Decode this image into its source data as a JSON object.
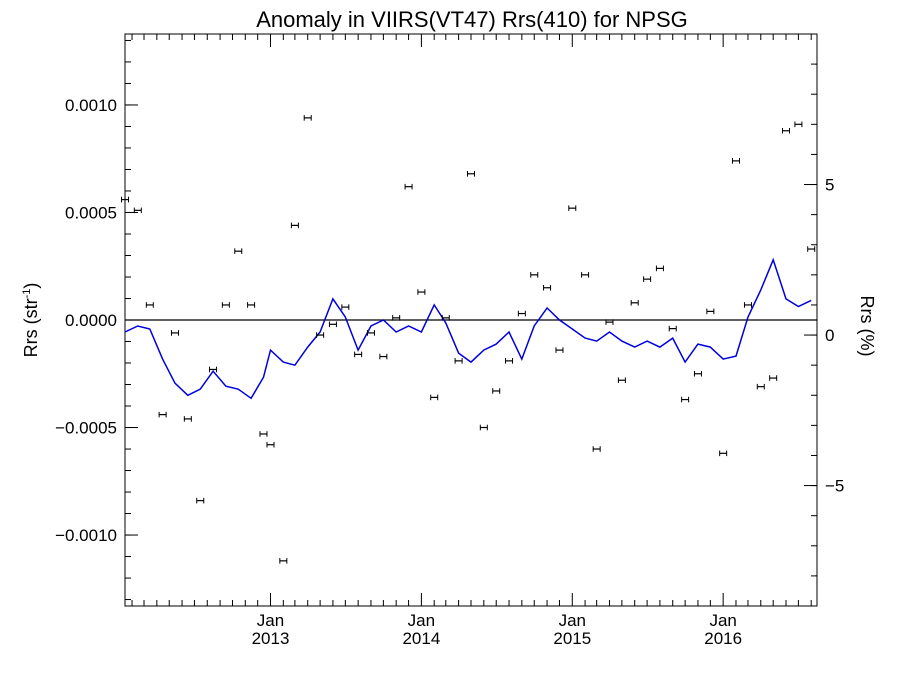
{
  "chart_data": {
    "type": "scatter",
    "title": "Anomaly in VIIRS(VT47) Rrs(410) for NPSG",
    "ylabel_left": "Rrs (str",
    "ylabel_left_sup": "-1",
    "ylabel_left_close": ")",
    "ylabel_right": "Rrs (%)",
    "x_range": [
      "2012-01-15",
      "2016-08-15"
    ],
    "ylim_left": [
      -0.00133,
      0.00133
    ],
    "ylim_right": [
      -9,
      10
    ],
    "zero_line": true,
    "grid": false,
    "y_ticks_left": [
      {
        "value": 0.001,
        "label": "0.0010"
      },
      {
        "value": 0.0005,
        "label": "0.0005"
      },
      {
        "value": 0,
        "label": "0.0000"
      },
      {
        "value": -0.0005,
        "label": "−0.0005"
      },
      {
        "value": -0.001,
        "label": "−0.0010"
      }
    ],
    "y_ticks_right": [
      {
        "value": 5,
        "label": "5"
      },
      {
        "value": 0,
        "label": "0"
      },
      {
        "value": -5,
        "label": "−5"
      }
    ],
    "x_ticks": [
      {
        "date": "2013-01-01",
        "month": "Jan",
        "year": "2013"
      },
      {
        "date": "2014-01-01",
        "month": "Jan",
        "year": "2014"
      },
      {
        "date": "2015-01-01",
        "month": "Jan",
        "year": "2015"
      },
      {
        "date": "2016-01-01",
        "month": "Jan",
        "year": "2016"
      }
    ],
    "series": [
      {
        "kind": "error_points",
        "axis": "left",
        "color": "#000000",
        "x": [
          "2012-01-15",
          "2012-02-15",
          "2012-03-15",
          "2012-04-15",
          "2012-05-15",
          "2012-06-15",
          "2012-07-15",
          "2012-08-15",
          "2012-09-15",
          "2012-10-15",
          "2012-11-15",
          "2012-12-15",
          "2013-01-01",
          "2013-02-01",
          "2013-03-01",
          "2013-04-01",
          "2013-05-01",
          "2013-06-01",
          "2013-07-01",
          "2013-08-01",
          "2013-09-01",
          "2013-10-01",
          "2013-11-01",
          "2013-12-01",
          "2014-01-01",
          "2014-02-01",
          "2014-03-01",
          "2014-04-01",
          "2014-05-01",
          "2014-06-01",
          "2014-07-01",
          "2014-08-01",
          "2014-09-01",
          "2014-10-01",
          "2014-11-01",
          "2014-12-01",
          "2015-01-01",
          "2015-02-01",
          "2015-03-01",
          "2015-04-01",
          "2015-05-01",
          "2015-06-01",
          "2015-07-01",
          "2015-08-01",
          "2015-09-01",
          "2015-10-01",
          "2015-11-01",
          "2015-12-01",
          "2016-01-01",
          "2016-02-01",
          "2016-03-01",
          "2016-04-01",
          "2016-05-01",
          "2016-06-01",
          "2016-07-01",
          "2016-08-01"
        ],
        "y": [
          0.00056,
          0.00051,
          7e-05,
          -0.00044,
          -6e-05,
          -0.00046,
          -0.00084,
          -0.00023,
          7e-05,
          0.00032,
          7e-05,
          -0.00053,
          -0.00058,
          -0.00112,
          0.00044,
          0.00094,
          -7e-05,
          -2e-05,
          6e-05,
          -0.00016,
          -6e-05,
          -0.00017,
          1e-05,
          0.00062,
          0.00013,
          -0.00036,
          1e-05,
          -0.00019,
          0.00068,
          -0.0005,
          -0.00033,
          -0.00019,
          3e-05,
          0.00021,
          0.00015,
          -0.00014,
          0.00052,
          0.00021,
          -0.0006,
          -1e-05,
          -0.00028,
          8e-05,
          0.00019,
          0.00024,
          -4e-05,
          -0.00037,
          -0.00025,
          4e-05,
          -0.00062,
          0.00074,
          7e-05,
          -0.00031,
          -0.00027,
          0.00088,
          0.00091,
          0.00033
        ],
        "y_error": 6e-06
      },
      {
        "kind": "line",
        "axis": "right",
        "color": "#0000dd",
        "x": [
          "2012-01-15",
          "2012-02-15",
          "2012-03-15",
          "2012-04-15",
          "2012-05-15",
          "2012-06-15",
          "2012-07-15",
          "2012-08-15",
          "2012-09-15",
          "2012-10-15",
          "2012-11-15",
          "2012-12-15",
          "2013-01-01",
          "2013-02-01",
          "2013-03-01",
          "2013-04-01",
          "2013-05-01",
          "2013-06-01",
          "2013-07-01",
          "2013-08-01",
          "2013-09-01",
          "2013-10-01",
          "2013-11-01",
          "2013-12-01",
          "2014-01-01",
          "2014-02-01",
          "2014-03-01",
          "2014-04-01",
          "2014-05-01",
          "2014-06-01",
          "2014-07-01",
          "2014-08-01",
          "2014-09-01",
          "2014-10-01",
          "2014-11-01",
          "2014-12-01",
          "2015-01-01",
          "2015-02-01",
          "2015-03-01",
          "2015-04-01",
          "2015-05-01",
          "2015-06-01",
          "2015-07-01",
          "2015-08-01",
          "2015-09-01",
          "2015-10-01",
          "2015-11-01",
          "2015-12-01",
          "2016-01-01",
          "2016-02-01",
          "2016-03-01",
          "2016-04-01",
          "2016-05-01",
          "2016-06-01",
          "2016-07-01",
          "2016-08-01"
        ],
        "y": [
          0.1,
          0.3,
          0.2,
          -0.8,
          -1.6,
          -2.0,
          -1.8,
          -1.2,
          -1.7,
          -1.8,
          -2.1,
          -1.4,
          -0.5,
          -0.9,
          -1.0,
          -0.4,
          0.1,
          1.2,
          0.6,
          -0.5,
          0.3,
          0.5,
          0.1,
          0.3,
          0.1,
          1.0,
          0.4,
          -0.6,
          -0.9,
          -0.5,
          -0.3,
          0.1,
          -0.8,
          0.3,
          0.9,
          0.5,
          0.2,
          -0.1,
          -0.2,
          0.1,
          -0.2,
          -0.4,
          -0.2,
          -0.4,
          -0.1,
          -0.9,
          -0.3,
          -0.4,
          -0.8,
          -0.7,
          0.6,
          1.5,
          2.5,
          1.2,
          0.95,
          1.15
        ]
      }
    ]
  }
}
